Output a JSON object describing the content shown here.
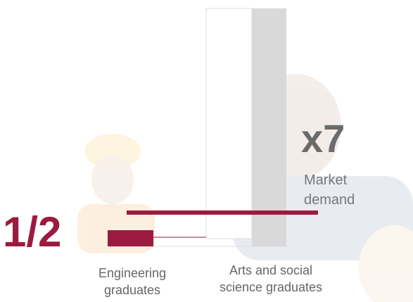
{
  "ratio_label": "1/2",
  "multiplier_label": "x7",
  "market_demand": [
    "Market",
    "demand"
  ],
  "engineering_label": [
    "Engineering",
    "graduates"
  ],
  "arts_label": [
    "Arts and social",
    "science graduates"
  ]
}
